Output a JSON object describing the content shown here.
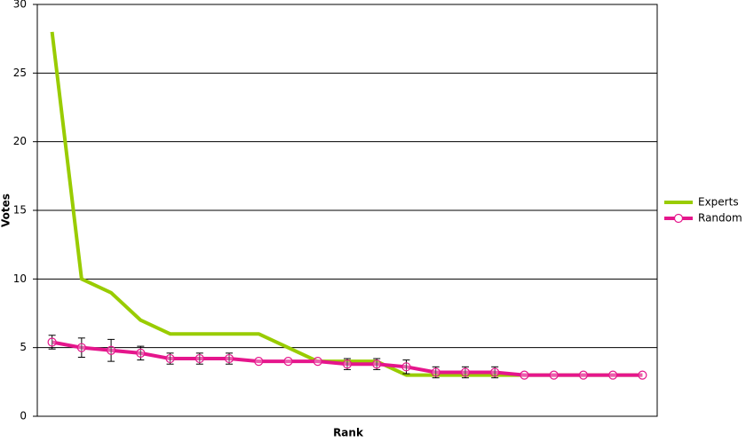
{
  "chart_data": {
    "type": "line",
    "x_label": "Rank",
    "y_label": "Votes",
    "categories": [
      null,
      null,
      null,
      null,
      null,
      null,
      null,
      null,
      null,
      null,
      null,
      null,
      null,
      null,
      null,
      null,
      null,
      null,
      null,
      null,
      null
    ],
    "series": [
      {
        "name": "Experts",
        "color": "#99cc00",
        "values": [
          28,
          10,
          9,
          7,
          6,
          6,
          6,
          6,
          5,
          4,
          4,
          4,
          3,
          3,
          3,
          3,
          3,
          3,
          3,
          3,
          3
        ]
      },
      {
        "name": "Random",
        "color": "#e5168c",
        "marker": "circle",
        "values": [
          5.4,
          5.0,
          4.8,
          4.6,
          4.2,
          4.2,
          4.2,
          4.0,
          4.0,
          4.0,
          3.8,
          3.8,
          3.6,
          3.2,
          3.2,
          3.2,
          3.0,
          3.0,
          3.0,
          3.0,
          3.0
        ],
        "errors": [
          0.5,
          0.7,
          0.8,
          0.5,
          0.4,
          0.4,
          0.4,
          null,
          null,
          null,
          0.4,
          0.4,
          0.5,
          0.4,
          0.4,
          0.4,
          null,
          null,
          null,
          null,
          null
        ]
      }
    ],
    "ylim": [
      0,
      30
    ],
    "yticks": [
      0,
      5,
      10,
      15,
      20,
      25,
      30
    ],
    "grid": true,
    "legend": "right"
  }
}
